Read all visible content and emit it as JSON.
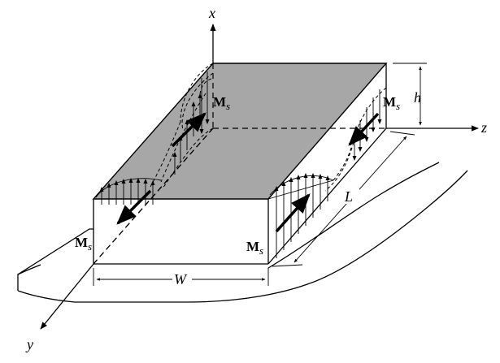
{
  "axes": {
    "x": "x",
    "y": "y",
    "z": "z"
  },
  "dimensions": {
    "height": "h",
    "length": "L",
    "width": "W"
  },
  "moment": {
    "symbol": "M",
    "subscript": "s"
  },
  "colors": {
    "top_face": "#a7a7a7",
    "line": "#000000",
    "background": "#ffffff"
  }
}
